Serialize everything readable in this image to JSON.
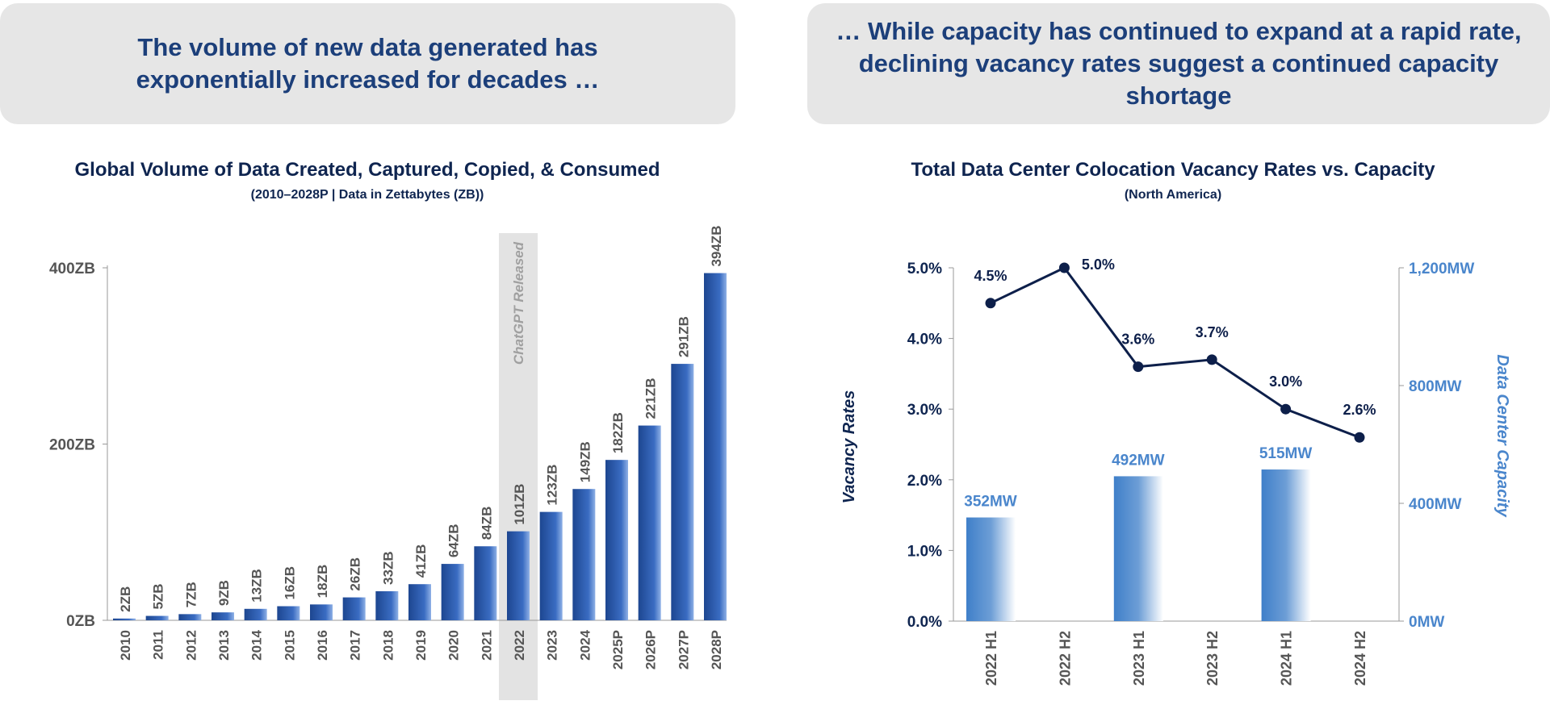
{
  "headers": {
    "left": "The volume of new data generated has exponentially increased for decades …",
    "right": "… While capacity has continued to expand at a rapid rate, declining vacancy rates suggest a continued capacity shortage"
  },
  "chart_data": [
    {
      "type": "bar",
      "title": "Global Volume of Data Created, Captured, Copied, & Consumed",
      "subtitle": "(2010–2028P | Data in Zettabytes (ZB))",
      "categories": [
        "2010",
        "2011",
        "2012",
        "2013",
        "2014",
        "2015",
        "2016",
        "2017",
        "2018",
        "2019",
        "2020",
        "2021",
        "2022",
        "2023",
        "2024",
        "2025P",
        "2026P",
        "2027P",
        "2028P"
      ],
      "values": [
        2,
        5,
        7,
        9,
        13,
        16,
        18,
        26,
        33,
        41,
        64,
        84,
        101,
        123,
        149,
        182,
        221,
        291,
        394
      ],
      "data_labels": [
        "2ZB",
        "5ZB",
        "7ZB",
        "9ZB",
        "13ZB",
        "16ZB",
        "18ZB",
        "26ZB",
        "33ZB",
        "41ZB",
        "64ZB",
        "84ZB",
        "101ZB",
        "123ZB",
        "149ZB",
        "182ZB",
        "221ZB",
        "291ZB",
        "394ZB"
      ],
      "yticks": [
        "0ZB",
        "200ZB",
        "400ZB"
      ],
      "ylim": [
        0,
        400
      ],
      "annotation": {
        "category": "2022",
        "text": "ChatGPT Released"
      },
      "colors": {
        "bar": "#2a5cb0",
        "highlight": "#e3e3e3"
      }
    },
    {
      "type": "bar+line",
      "title": "Total Data Center Colocation Vacancy Rates vs. Capacity",
      "subtitle": "(North America)",
      "categories": [
        "2022 H1",
        "2022 H2",
        "2023 H1",
        "2023 H2",
        "2024 H1",
        "2024 H2"
      ],
      "series": [
        {
          "name": "Vacancy Rates",
          "type": "line",
          "axis": "left",
          "values": [
            4.5,
            5.0,
            3.6,
            3.7,
            3.0,
            2.6
          ],
          "labels": [
            "4.5%",
            "5.0%",
            "3.6%",
            "3.7%",
            "3.0%",
            "2.6%"
          ],
          "color": "#0d1f4a"
        },
        {
          "name": "Data Center Capacity",
          "type": "bar",
          "axis": "right",
          "values": [
            352,
            null,
            492,
            null,
            515,
            null
          ],
          "labels": [
            "352MW",
            "",
            "492MW",
            "",
            "515MW",
            ""
          ],
          "color": "#3f7fc9"
        }
      ],
      "ylabel_left": "Vacancy Rates",
      "ylabel_right": "Data Center Capacity",
      "yticks_left": [
        "0.0%",
        "1.0%",
        "2.0%",
        "3.0%",
        "4.0%",
        "5.0%"
      ],
      "ylim_left": [
        0,
        5
      ],
      "yticks_right": [
        "0MW",
        "400MW",
        "800MW",
        "1,200MW"
      ],
      "ylim_right": [
        0,
        1200
      ]
    }
  ]
}
